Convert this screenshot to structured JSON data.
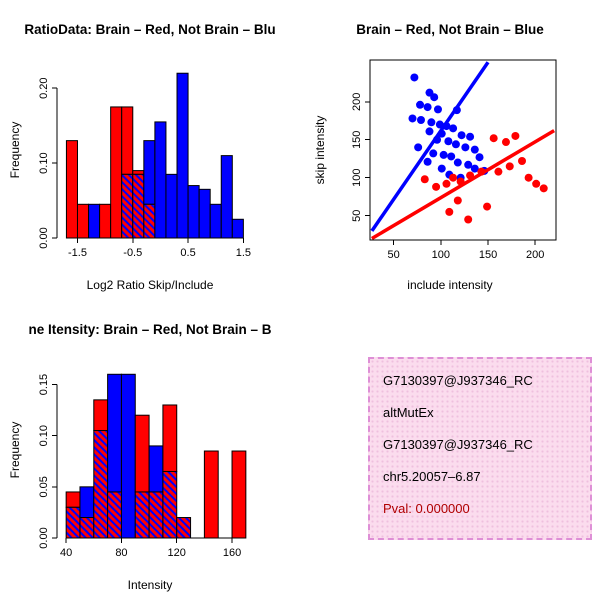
{
  "colors": {
    "red": "#ff0000",
    "blue": "#0000ff",
    "axis_black": "#000000",
    "pval_red": "#b00000",
    "info_box_bg": "#fbdcee",
    "info_box_border": "#de8fd6"
  },
  "panels": {
    "ratio_hist": {
      "title": "RatioData: Brain – Red, Not Brain – Blu",
      "xlabel": "Log2 Ratio Skip/Include",
      "ylabel": "Frequency"
    },
    "scatter": {
      "title": "Brain – Red, Not Brain – Blue",
      "xlabel": "include intensity",
      "ylabel": "skip intensity"
    },
    "intensity_hist": {
      "title": "ne Itensity: Brain – Red, Not Brain – B",
      "xlabel": "Intensity",
      "ylabel": "Frequency"
    },
    "info_box": {
      "lines": [
        {
          "text": "G7130397@J937346_RC",
          "color": "#000000"
        },
        {
          "text": "altMutEx",
          "color": "#000000"
        },
        {
          "text": "G7130397@J937346_RC",
          "color": "#000000"
        },
        {
          "text": "chr5.20057–6.87",
          "color": "#000000"
        },
        {
          "text": "Pval: 0.000000",
          "color": "#b00000"
        }
      ]
    }
  },
  "chart_data": [
    {
      "id": "ratio_hist",
      "type": "bar",
      "subtype": "overlaid-histogram",
      "title": "RatioData: Brain – Red, Not Brain – Blu",
      "xlabel": "Log2 Ratio Skip/Include",
      "ylabel": "Frequency",
      "bin_start": -1.7,
      "bin_width": 0.2,
      "xlim": [
        -1.78,
        1.62
      ],
      "ylim": [
        0,
        0.235
      ],
      "xticks": [
        {
          "v": -1.5,
          "label": "-1.5"
        },
        {
          "v": -0.5,
          "label": "-0.5"
        },
        {
          "v": 0.5,
          "label": "0.5"
        },
        {
          "v": 1.5,
          "label": "1.5"
        }
      ],
      "yticks": [
        {
          "v": 0.0,
          "label": "0.00"
        },
        {
          "v": 0.1,
          "label": "0.10"
        },
        {
          "v": 0.2,
          "label": "0.20"
        }
      ],
      "series": [
        {
          "name": "Brain",
          "color": "red",
          "values": [
            0.13,
            0.045,
            0,
            0.045,
            0.175,
            0.175,
            0.09,
            0.045,
            0,
            0,
            0,
            0,
            0,
            0,
            0,
            0
          ]
        },
        {
          "name": "Not Brain",
          "color": "blue",
          "values": [
            0,
            0,
            0.045,
            0,
            0,
            0.085,
            0.085,
            0.13,
            0.155,
            0.085,
            0.22,
            0.07,
            0.065,
            0.045,
            0.11,
            0.025
          ]
        }
      ]
    },
    {
      "id": "scatter",
      "type": "scatter",
      "title": "Brain – Red, Not Brain – Blue",
      "xlabel": "include intensity",
      "ylabel": "skip intensity",
      "xlim": [
        25,
        222
      ],
      "ylim": [
        18,
        255
      ],
      "xticks": [
        {
          "v": 50,
          "label": "50"
        },
        {
          "v": 100,
          "label": "100"
        },
        {
          "v": 150,
          "label": "150"
        },
        {
          "v": 200,
          "label": "200"
        }
      ],
      "yticks": [
        {
          "v": 50,
          "label": "50"
        },
        {
          "v": 100,
          "label": "100"
        },
        {
          "v": 150,
          "label": "150"
        },
        {
          "v": 200,
          "label": "200"
        }
      ],
      "series": [
        {
          "name": "Not Brain",
          "color": "blue",
          "points": [
            [
              72,
              232
            ],
            [
              88,
              212
            ],
            [
              93,
              206
            ],
            [
              78,
              196
            ],
            [
              86,
              193
            ],
            [
              97,
              190
            ],
            [
              117,
              189
            ],
            [
              70,
              178
            ],
            [
              79,
              176
            ],
            [
              90,
              173
            ],
            [
              99,
              170
            ],
            [
              106,
              168
            ],
            [
              113,
              165
            ],
            [
              88,
              161
            ],
            [
              101,
              158
            ],
            [
              122,
              156
            ],
            [
              131,
              154
            ],
            [
              96,
              150
            ],
            [
              108,
              148
            ],
            [
              116,
              144
            ],
            [
              76,
              140
            ],
            [
              126,
              140
            ],
            [
              136,
              137
            ],
            [
              92,
              132
            ],
            [
              103,
              130
            ],
            [
              111,
              128
            ],
            [
              141,
              127
            ],
            [
              86,
              121
            ],
            [
              118,
              120
            ],
            [
              129,
              117
            ],
            [
              101,
              112
            ],
            [
              136,
              112
            ],
            [
              146,
              109
            ],
            [
              109,
              104
            ],
            [
              121,
              100
            ]
          ],
          "fit_line": [
            [
              27,
              30
            ],
            [
              150,
              252
            ]
          ]
        },
        {
          "name": "Brain",
          "color": "red",
          "points": [
            [
              83,
              98
            ],
            [
              95,
              88
            ],
            [
              106,
              92
            ],
            [
              113,
              100
            ],
            [
              121,
              95
            ],
            [
              131,
              103
            ],
            [
              143,
              108
            ],
            [
              156,
              152
            ],
            [
              169,
              147
            ],
            [
              179,
              155
            ],
            [
              186,
              122
            ],
            [
              193,
              100
            ],
            [
              201,
              92
            ],
            [
              209,
              86
            ],
            [
              149,
              62
            ],
            [
              129,
              45
            ],
            [
              109,
              55
            ],
            [
              173,
              115
            ],
            [
              161,
              108
            ],
            [
              118,
              70
            ]
          ],
          "fit_line": [
            [
              27,
              20
            ],
            [
              220,
              162
            ]
          ]
        }
      ]
    },
    {
      "id": "intensity_hist",
      "type": "bar",
      "subtype": "overlaid-histogram",
      "title": "ne Itensity: Brain – Red, Not Brain – B",
      "xlabel": "Intensity",
      "ylabel": "Frequency",
      "bin_start": 40,
      "bin_width": 10,
      "xlim": [
        37,
        173
      ],
      "ylim": [
        0,
        0.172
      ],
      "xticks": [
        {
          "v": 40,
          "label": "40"
        },
        {
          "v": 80,
          "label": "80"
        },
        {
          "v": 120,
          "label": "120"
        },
        {
          "v": 160,
          "label": "160"
        }
      ],
      "yticks": [
        {
          "v": 0.0,
          "label": "0.00"
        },
        {
          "v": 0.05,
          "label": "0.05"
        },
        {
          "v": 0.1,
          "label": "0.10"
        },
        {
          "v": 0.15,
          "label": "0.15"
        }
      ],
      "series": [
        {
          "name": "Brain",
          "color": "red",
          "values": [
            0.045,
            0.02,
            0.135,
            0.045,
            0,
            0.12,
            0.045,
            0.13,
            0.02,
            0,
            0.085,
            0,
            0.085
          ]
        },
        {
          "name": "Not Brain",
          "color": "blue",
          "values": [
            0.03,
            0.05,
            0.105,
            0.16,
            0.16,
            0.045,
            0.09,
            0.065,
            0.02,
            0,
            0,
            0,
            0
          ]
        }
      ]
    }
  ]
}
